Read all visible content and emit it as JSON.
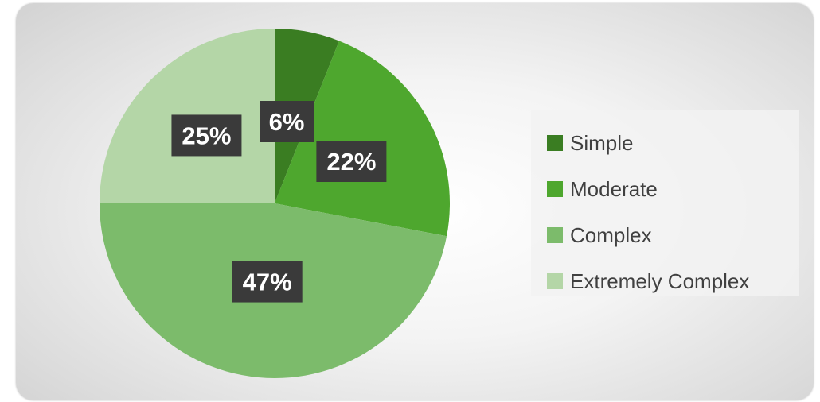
{
  "chart_data": {
    "type": "pie",
    "title": "",
    "categories": [
      "Simple",
      "Moderate",
      "Complex",
      "Extremely Complex"
    ],
    "values": [
      6,
      22,
      47,
      25
    ],
    "data_labels": [
      "6%",
      "22%",
      "47%",
      "25%"
    ],
    "colors": [
      "#3a7d22",
      "#4ea72e",
      "#7cbb6b",
      "#b4d6a7"
    ],
    "legend_position": "right",
    "start_angle_deg": 0,
    "direction": "clockwise"
  },
  "legend": {
    "items": [
      {
        "label": "Simple",
        "color": "#3a7d22"
      },
      {
        "label": "Moderate",
        "color": "#4ea72e"
      },
      {
        "label": "Complex",
        "color": "#7cbb6b"
      },
      {
        "label": "Extremely Complex",
        "color": "#b4d6a7"
      }
    ]
  }
}
